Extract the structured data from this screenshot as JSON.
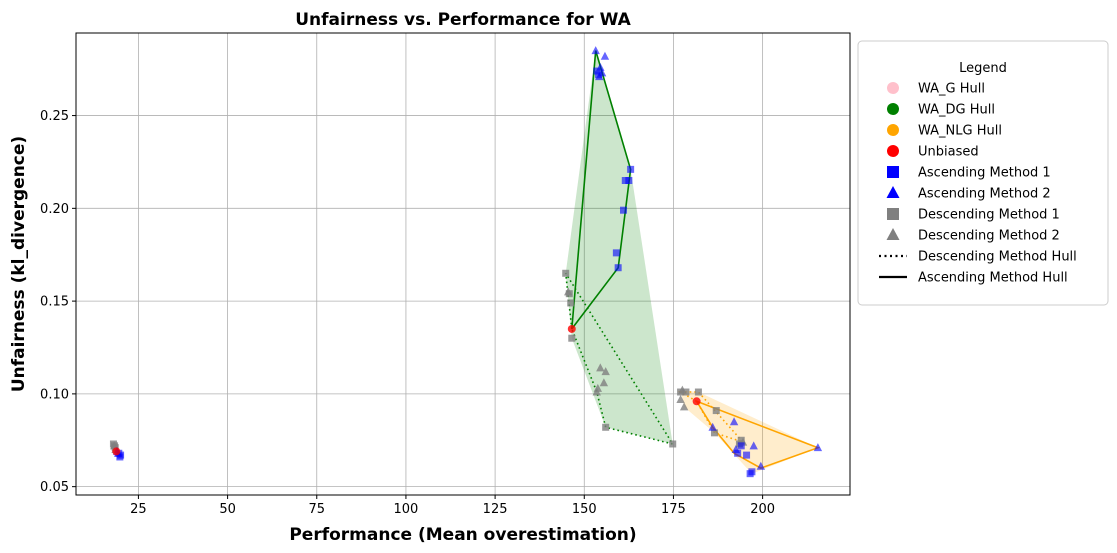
{
  "chart_data": {
    "type": "scatter",
    "title": "Unfairness vs. Performance for WA",
    "xlabel": "Performance (Mean overestimation)",
    "ylabel": "Unfairness (kl_divergence)",
    "xlim": [
      7.5,
      224.5
    ],
    "ylim": [
      0.0455,
      0.2945
    ],
    "xticks": [
      25,
      50,
      75,
      100,
      125,
      150,
      175,
      200
    ],
    "yticks": [
      0.05,
      0.1,
      0.15,
      0.2,
      0.25
    ],
    "grid": true,
    "legend": {
      "title": "Legend",
      "placement": "outside-right",
      "entries": [
        {
          "label": "WA_G Hull",
          "marker": "circle",
          "color": "#ffc0cb"
        },
        {
          "label": "WA_DG Hull",
          "marker": "circle",
          "color": "#008000"
        },
        {
          "label": "WA_NLG Hull",
          "marker": "circle",
          "color": "#ffa500"
        },
        {
          "label": "Unbiased",
          "marker": "circle",
          "color": "#ff0000"
        },
        {
          "label": "Ascending Method 1",
          "marker": "square",
          "color": "#0000ff"
        },
        {
          "label": "Ascending Method 2",
          "marker": "triangle",
          "color": "#0000ff"
        },
        {
          "label": "Descending Method 1",
          "marker": "square",
          "color": "#808080"
        },
        {
          "label": "Descending Method 2",
          "marker": "triangle",
          "color": "#808080"
        },
        {
          "label": "Descending Method Hull",
          "marker": "dotted-line",
          "color": "#000000"
        },
        {
          "label": "Ascending Method Hull",
          "marker": "solid-line",
          "color": "#000000"
        }
      ]
    },
    "groups": [
      {
        "name": "WA_G",
        "color": "#ffc0cb",
        "unbiased": [
          [
            18.8,
            0.069
          ]
        ],
        "ascending_method_1": [
          [
            19.5,
            0.068
          ],
          [
            20.0,
            0.067
          ],
          [
            19.8,
            0.066
          ]
        ],
        "ascending_method_2": [
          [
            19.0,
            0.069
          ],
          [
            19.3,
            0.068
          ]
        ],
        "descending_method_1": [
          [
            18.0,
            0.073
          ],
          [
            18.3,
            0.072
          ],
          [
            18.5,
            0.071
          ]
        ],
        "descending_method_2": [
          [
            18.2,
            0.072
          ],
          [
            18.6,
            0.07
          ]
        ],
        "ascending_hull": [
          [
            18.8,
            0.069
          ],
          [
            20.0,
            0.067
          ],
          [
            19.8,
            0.066
          ],
          [
            18.8,
            0.069
          ]
        ],
        "descending_hull": [
          [
            18.8,
            0.069
          ],
          [
            18.0,
            0.073
          ],
          [
            18.5,
            0.071
          ],
          [
            18.8,
            0.069
          ]
        ],
        "fill_hull": [
          [
            18.0,
            0.073
          ],
          [
            20.0,
            0.067
          ],
          [
            19.8,
            0.066
          ],
          [
            18.5,
            0.071
          ]
        ]
      },
      {
        "name": "WA_DG",
        "color": "#008000",
        "unbiased": [
          [
            146.5,
            0.135
          ]
        ],
        "ascending_method_1": [
          [
            153.5,
            0.274
          ],
          [
            154.0,
            0.272
          ],
          [
            163.0,
            0.221
          ],
          [
            161.5,
            0.215
          ],
          [
            162.5,
            0.215
          ],
          [
            161.0,
            0.199
          ],
          [
            159.0,
            0.176
          ],
          [
            159.5,
            0.168
          ]
        ],
        "ascending_method_2": [
          [
            153.2,
            0.285
          ],
          [
            155.8,
            0.282
          ],
          [
            154.5,
            0.276
          ],
          [
            155.0,
            0.273
          ],
          [
            154.2,
            0.271
          ]
        ],
        "descending_method_1": [
          [
            144.8,
            0.165
          ],
          [
            145.8,
            0.154
          ],
          [
            146.2,
            0.149
          ],
          [
            146.5,
            0.13
          ],
          [
            156.0,
            0.082
          ],
          [
            174.8,
            0.073
          ]
        ],
        "descending_method_2": [
          [
            145.5,
            0.155
          ],
          [
            154.5,
            0.114
          ],
          [
            156.0,
            0.112
          ],
          [
            155.5,
            0.106
          ],
          [
            153.8,
            0.103
          ],
          [
            153.5,
            0.101
          ]
        ],
        "ascending_hull": [
          [
            146.5,
            0.135
          ],
          [
            153.2,
            0.285
          ],
          [
            163.0,
            0.221
          ],
          [
            159.5,
            0.168
          ],
          [
            146.5,
            0.135
          ]
        ],
        "descending_hull": [
          [
            146.5,
            0.135
          ],
          [
            144.8,
            0.165
          ],
          [
            174.8,
            0.073
          ],
          [
            156.0,
            0.082
          ],
          [
            153.5,
            0.101
          ],
          [
            146.5,
            0.135
          ]
        ],
        "fill_hull": [
          [
            144.8,
            0.165
          ],
          [
            153.2,
            0.285
          ],
          [
            163.0,
            0.221
          ],
          [
            174.8,
            0.073
          ],
          [
            156.0,
            0.082
          ],
          [
            146.5,
            0.13
          ]
        ]
      },
      {
        "name": "WA_NLG",
        "color": "#ffa500",
        "unbiased": [
          [
            181.5,
            0.096
          ]
        ],
        "ascending_method_1": [
          [
            193.0,
            0.068
          ],
          [
            195.5,
            0.067
          ],
          [
            197.0,
            0.058
          ],
          [
            196.5,
            0.057
          ],
          [
            194.0,
            0.072
          ]
        ],
        "ascending_method_2": [
          [
            215.5,
            0.071
          ],
          [
            199.5,
            0.061
          ],
          [
            192.0,
            0.085
          ],
          [
            197.5,
            0.072
          ],
          [
            186.0,
            0.082
          ],
          [
            192.5,
            0.07
          ]
        ],
        "descending_method_1": [
          [
            177.0,
            0.101
          ],
          [
            178.5,
            0.101
          ],
          [
            182.0,
            0.101
          ],
          [
            187.0,
            0.091
          ],
          [
            186.5,
            0.079
          ],
          [
            194.0,
            0.075
          ],
          [
            193.5,
            0.073
          ]
        ],
        "descending_method_2": [
          [
            177.5,
            0.102
          ],
          [
            177.0,
            0.097
          ],
          [
            178.0,
            0.093
          ],
          [
            194.5,
            0.074
          ]
        ],
        "ascending_hull": [
          [
            181.5,
            0.096
          ],
          [
            215.5,
            0.071
          ],
          [
            199.5,
            0.06
          ],
          [
            192.0,
            0.068
          ],
          [
            186.0,
            0.082
          ],
          [
            181.5,
            0.096
          ]
        ],
        "descending_hull": [
          [
            181.5,
            0.096
          ],
          [
            177.0,
            0.101
          ],
          [
            182.0,
            0.101
          ],
          [
            194.5,
            0.074
          ],
          [
            186.5,
            0.079
          ],
          [
            181.5,
            0.096
          ]
        ],
        "fill_hull": [
          [
            177.0,
            0.102
          ],
          [
            182.0,
            0.101
          ],
          [
            215.5,
            0.071
          ],
          [
            197.0,
            0.057
          ],
          [
            186.5,
            0.079
          ],
          [
            178.0,
            0.093
          ]
        ]
      }
    ]
  }
}
